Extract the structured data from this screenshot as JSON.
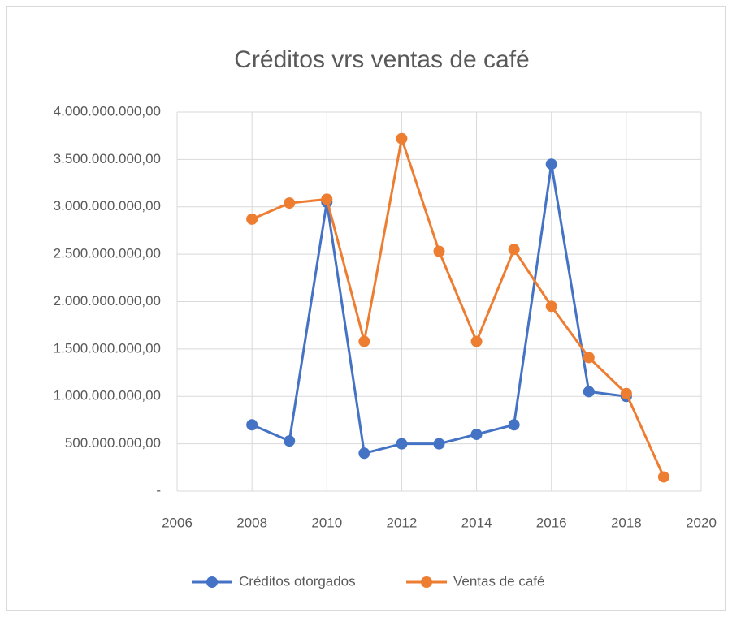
{
  "chart_data": {
    "type": "line",
    "title": "Créditos vrs ventas de café",
    "x": [
      2008,
      2009,
      2010,
      2011,
      2012,
      2013,
      2014,
      2015,
      2016,
      2017,
      2018,
      2019
    ],
    "series": [
      {
        "name": "Créditos otorgados",
        "color": "#4472c4",
        "values": [
          700000000,
          530000000,
          3050000000,
          400000000,
          500000000,
          500000000,
          600000000,
          700000000,
          3450000000,
          1050000000,
          1000000000,
          null
        ]
      },
      {
        "name": "Ventas de café",
        "color": "#ed7d31",
        "values": [
          2870000000,
          3040000000,
          3080000000,
          1580000000,
          3720000000,
          2530000000,
          1580000000,
          2550000000,
          1950000000,
          1410000000,
          1030000000,
          150000000
        ]
      }
    ],
    "xlim": [
      2006,
      2020
    ],
    "xticks": [
      2006,
      2008,
      2010,
      2012,
      2014,
      2016,
      2018,
      2020
    ],
    "ylim": [
      0,
      4000000000
    ],
    "yticks": [
      {
        "value": 0,
        "label": "-"
      },
      {
        "value": 500000000,
        "label": "500.000.000,00"
      },
      {
        "value": 1000000000,
        "label": "1.000.000.000,00"
      },
      {
        "value": 1500000000,
        "label": "1.500.000.000,00"
      },
      {
        "value": 2000000000,
        "label": "2.000.000.000,00"
      },
      {
        "value": 2500000000,
        "label": "2.500.000.000,00"
      },
      {
        "value": 3000000000,
        "label": "3.000.000.000,00"
      },
      {
        "value": 3500000000,
        "label": "3.500.000.000,00"
      },
      {
        "value": 4000000000,
        "label": "4.000.000.000,00"
      }
    ],
    "grid": true,
    "legend": "bottom"
  }
}
